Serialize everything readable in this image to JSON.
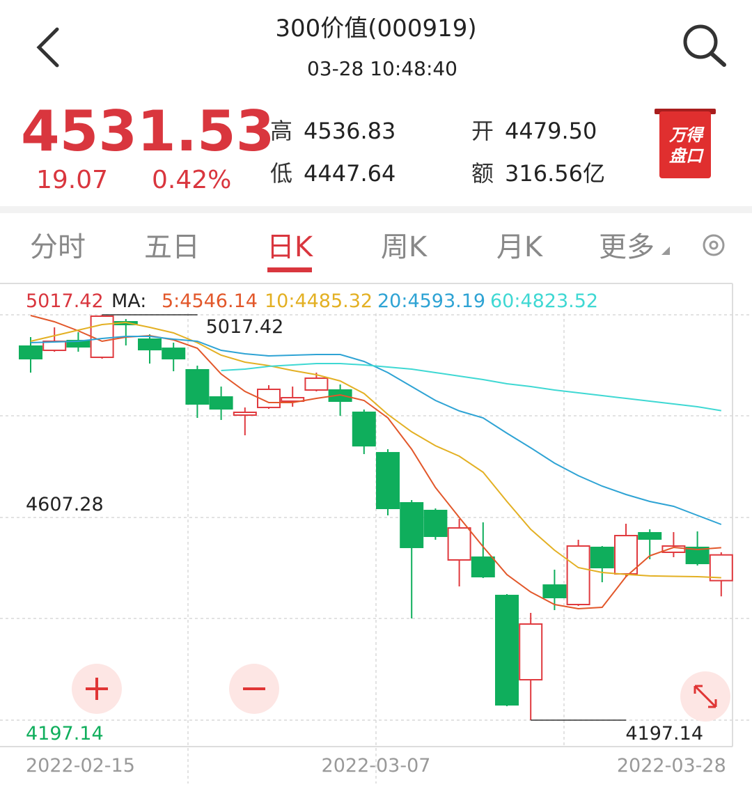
{
  "header": {
    "title": "300价值(000919)",
    "time": "03-28 10:48:40"
  },
  "quote": {
    "price": "4531.53",
    "change": "19.07",
    "change_pct": "0.42%",
    "stats": [
      {
        "label": "高",
        "value": "4536.83"
      },
      {
        "label": "开",
        "value": "4479.50"
      },
      {
        "label": "低",
        "value": "4447.64"
      },
      {
        "label": "额",
        "value": "316.56亿"
      }
    ]
  },
  "badge": [
    "万得",
    "盘口"
  ],
  "tabs": [
    "分时",
    "五日",
    "日K",
    "周K",
    "月K",
    "更多"
  ],
  "active_tab": 2,
  "chart_data": {
    "type": "candlestick",
    "categories": [
      "2022-02-15",
      null,
      null,
      null,
      null,
      null,
      null,
      null,
      null,
      null,
      null,
      null,
      null,
      null,
      "2022-03-07",
      null,
      null,
      null,
      null,
      null,
      null,
      null,
      null,
      null,
      null,
      null,
      null,
      null,
      null,
      "2022-03-28"
    ],
    "open": [
      4954.0,
      4945.5,
      4965.3,
      4931.4,
      5003.3,
      4968.1,
      4949.7,
      4906.1,
      4851.1,
      4814.4,
      4829.9,
      4842.6,
      4865.2,
      4865.2,
      4820.1,
      4738.3,
      4636.9,
      4621.4,
      4521.3,
      4526.9,
      4449.4,
      4278.9,
      4470.5,
      4431.1,
      4546.7,
      4493.1,
      4576.3,
      4536.8,
      4546.7,
      4479.5
    ],
    "high": [
      4972.3,
      4992.0,
      4982.2,
      5017.42,
      5008.9,
      4977.9,
      4961.0,
      4914.5,
      4872.2,
      4829.9,
      4875.0,
      4872.2,
      4900.4,
      4876.5,
      4825.7,
      4745.4,
      4642.5,
      4625.6,
      4604.4,
      4597.4,
      4452.2,
      4414.2,
      4501.6,
      4562.2,
      4549.5,
      4594.6,
      4583.3,
      4577.7,
      4579.1,
      4536.83
    ],
    "low": [
      4900.4,
      4942.7,
      4942.7,
      4928.6,
      4955.4,
      4918.7,
      4903.2,
      4808.8,
      4804.6,
      4773.6,
      4827.1,
      4831.4,
      4862.4,
      4813.0,
      4735.5,
      4611.5,
      4402.9,
      4562.2,
      4467.7,
      4484.6,
      4225.3,
      4197.14,
      4419.8,
      4428.3,
      4476.2,
      4487.5,
      4522.7,
      4526.9,
      4510.0,
      4447.64
    ],
    "close": [
      4928.6,
      4963.8,
      4952.6,
      5014.6,
      4997.7,
      4946.9,
      4928.6,
      4837.0,
      4827.1,
      4820.1,
      4866.6,
      4849.7,
      4889.1,
      4842.6,
      4752.4,
      4625.6,
      4546.7,
      4569.2,
      4586.1,
      4487.5,
      4228.1,
      4391.6,
      4445.2,
      4549.5,
      4505.8,
      4570.6,
      4563.6,
      4549.5,
      4514.2,
      4531.53
    ],
    "up_color": "#e0393e",
    "down_color": "#0fae5c",
    "ma_label": "MA:",
    "series": [
      {
        "name": "5:4546.14",
        "color": "#e2572a",
        "values": [
          5016.0,
          5003.3,
          4985.0,
          4963.8,
          4972.3,
          4975.1,
          4966.7,
          4949.7,
          4897.6,
          4862.4,
          4839.8,
          4839.8,
          4848.3,
          4855.3,
          4844.1,
          4808.8,
          4745.4,
          4667.9,
          4607.3,
          4548.1,
          4491.7,
          4456.5,
          4431.1,
          4422.6,
          4425.5,
          4487.5,
          4529.8,
          4546.7,
          4542.5,
          4546.14
        ]
      },
      {
        "name": "10:4485.32",
        "color": "#e3b023",
        "values": [
          4963.8,
          4975.1,
          4986.4,
          4997.7,
          5001.9,
          4992.0,
          4980.8,
          4961.0,
          4935.7,
          4921.6,
          4914.5,
          4904.7,
          4896.2,
          4883.5,
          4858.2,
          4815.9,
          4780.6,
          4752.4,
          4731.3,
          4698.9,
          4639.7,
          4583.3,
          4541.0,
          4505.8,
          4495.9,
          4492.1,
          4489.0,
          4488.2,
          4487.5,
          4485.32
        ]
      },
      {
        "name": "20:4593.19",
        "color": "#2ea3d4",
        "values": [
          4961.0,
          4962.4,
          4963.8,
          4969.5,
          4973.7,
          4973.7,
          4968.1,
          4963.8,
          4945.5,
          4938.5,
          4934.3,
          4935.7,
          4937.1,
          4937.1,
          4923.0,
          4900.4,
          4872.2,
          4844.1,
          4822.9,
          4808.8,
          4777.8,
          4748.2,
          4717.2,
          4691.8,
          4670.7,
          4653.8,
          4639.7,
          4629.8,
          4611.5,
          4593.19
        ]
      },
      {
        "name": "60:4823.52",
        "color": "#3fd8d3",
        "values": [
          null,
          null,
          null,
          null,
          null,
          null,
          null,
          null,
          4904.7,
          4907.5,
          4913.1,
          4916.0,
          4918.7,
          4918.7,
          4916.0,
          4911.7,
          4907.5,
          4900.4,
          4893.4,
          4886.3,
          4877.9,
          4872.2,
          4865.2,
          4859.5,
          4853.9,
          4848.3,
          4842.6,
          4837.0,
          4831.4,
          4823.52
        ]
      }
    ],
    "ylim": [
      4197.14,
      5017.42
    ],
    "yticks": [
      5017.42,
      4607.28,
      4197.14
    ],
    "high_marker": 5017.42,
    "low_marker": 4197.14
  }
}
